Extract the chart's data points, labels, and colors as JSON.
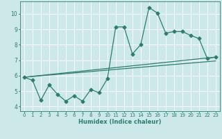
{
  "xlabel": "Humidex (Indice chaleur)",
  "x_values": [
    0,
    1,
    2,
    3,
    4,
    5,
    6,
    7,
    8,
    9,
    10,
    11,
    12,
    13,
    14,
    15,
    16,
    17,
    18,
    19,
    20,
    21,
    22,
    23
  ],
  "line1": [
    5.9,
    5.7,
    4.4,
    5.4,
    4.8,
    4.35,
    4.7,
    4.35,
    5.1,
    4.9,
    5.8,
    9.15,
    9.15,
    7.4,
    8.0,
    10.4,
    10.05,
    8.75,
    8.85,
    8.85,
    8.6,
    8.4,
    7.1,
    7.2
  ],
  "trend1_x": [
    0,
    23
  ],
  "trend1_y": [
    5.9,
    7.2
  ],
  "trend2_x": [
    0,
    23
  ],
  "trend2_y": [
    5.9,
    6.95
  ],
  "line_color": "#2d7d6e",
  "bg_color": "#cce8e8",
  "grid_color": "#b0d8d8",
  "ylim": [
    3.7,
    10.8
  ],
  "xlim": [
    -0.5,
    23.5
  ],
  "yticks": [
    4,
    5,
    6,
    7,
    8,
    9,
    10
  ],
  "xticks": [
    0,
    1,
    2,
    3,
    4,
    5,
    6,
    7,
    8,
    9,
    10,
    11,
    12,
    13,
    14,
    15,
    16,
    17,
    18,
    19,
    20,
    21,
    22,
    23
  ],
  "marker_size": 2.5,
  "line_width": 0.9,
  "xlabel_fontsize": 6.0,
  "tick_fontsize": 5.0
}
